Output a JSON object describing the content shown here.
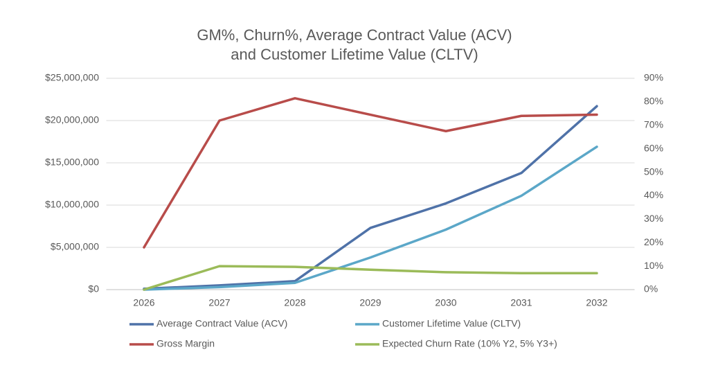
{
  "chart_data": {
    "type": "line",
    "title": [
      "GM%, Churn%, Average Contract Value (ACV)",
      "and Customer Lifetime Value (CLTV)"
    ],
    "categories": [
      "2026",
      "2027",
      "2028",
      "2029",
      "2030",
      "2031",
      "2032"
    ],
    "series": [
      {
        "name": "Average Contract Value (ACV)",
        "color": "#4f72a8",
        "values": [
          100000,
          500000,
          1000000,
          7300000,
          10200000,
          13800000,
          21700000
        ]
      },
      {
        "name": "Customer Lifetime Value (CLTV)",
        "color": "#5ba7c8",
        "values": [
          0,
          300000,
          800000,
          3800000,
          7100000,
          11100000,
          16900000
        ]
      },
      {
        "name": "Gross Margin",
        "color": "#b84c4a",
        "axis": "y2",
        "values": [
          18,
          72,
          81.5,
          74.5,
          67.5,
          74,
          74.5
        ]
      },
      {
        "name": "Expected Churn Rate (10% Y2, 5% Y3+)",
        "color": "#9bbb59",
        "axis": "y2",
        "values": [
          0,
          10,
          9.7,
          8.5,
          7.4,
          7,
          7
        ]
      }
    ],
    "ylim": [
      0,
      25000000
    ],
    "yticks": [
      {
        "value": 0,
        "label": "$0"
      },
      {
        "value": 5000000,
        "label": "$5,000,000"
      },
      {
        "value": 10000000,
        "label": "$10,000,000"
      },
      {
        "value": 15000000,
        "label": "$15,000,000"
      },
      {
        "value": 20000000,
        "label": "$20,000,000"
      },
      {
        "value": 25000000,
        "label": "$25,000,000"
      }
    ],
    "y2lim": [
      0,
      90
    ],
    "y2ticks": [
      {
        "value": 0,
        "label": "0%"
      },
      {
        "value": 10,
        "label": "10%"
      },
      {
        "value": 20,
        "label": "20%"
      },
      {
        "value": 30,
        "label": "30%"
      },
      {
        "value": 40,
        "label": "40%"
      },
      {
        "value": 50,
        "label": "50%"
      },
      {
        "value": 60,
        "label": "60%"
      },
      {
        "value": 70,
        "label": "70%"
      },
      {
        "value": 80,
        "label": "80%"
      },
      {
        "value": 90,
        "label": "90%"
      }
    ],
    "grid": true,
    "legend": "bottom"
  }
}
